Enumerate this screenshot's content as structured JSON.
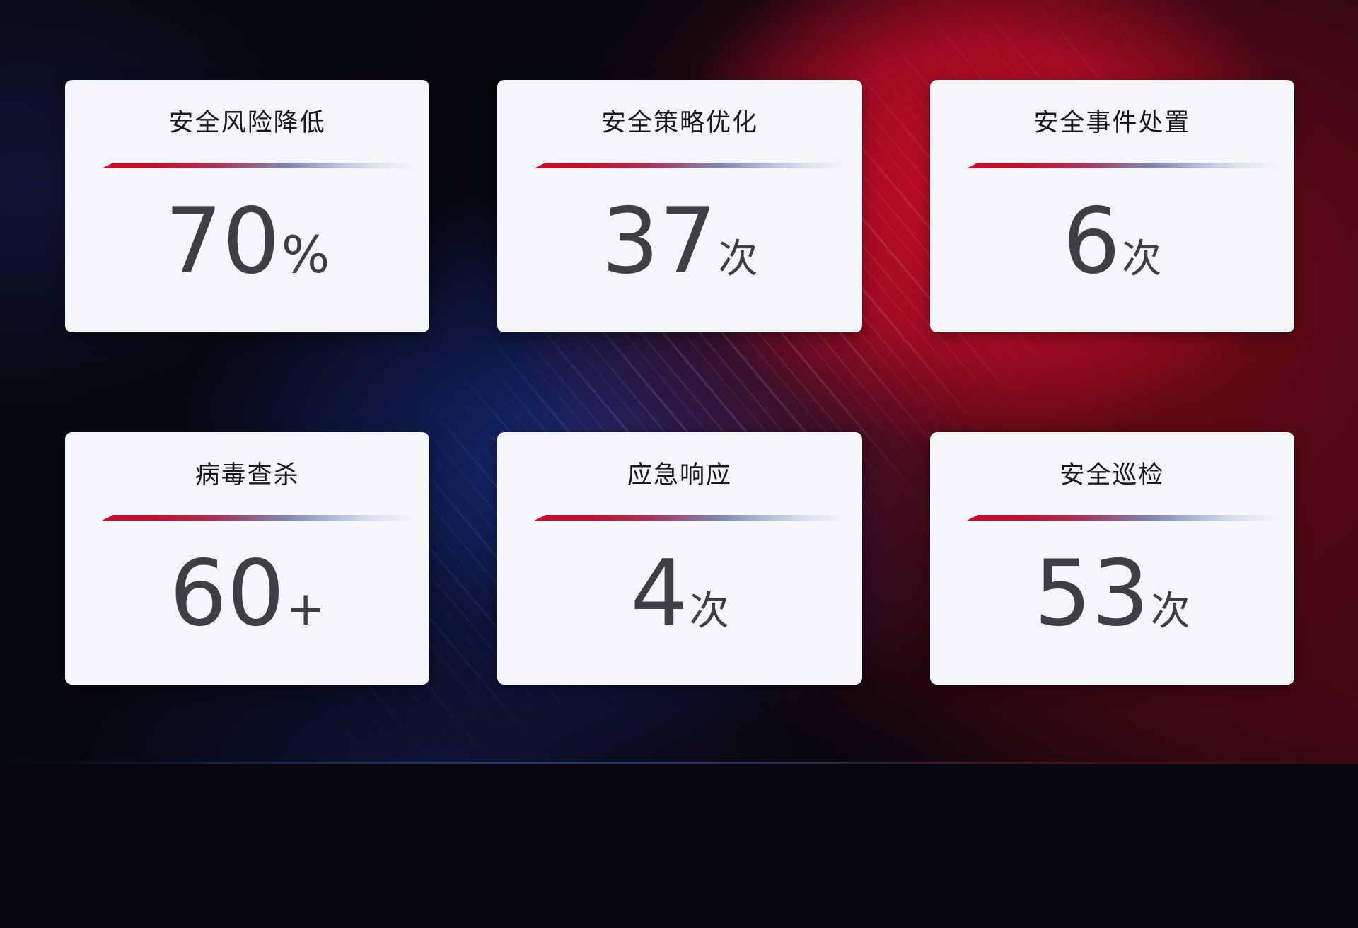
{
  "cards": [
    {
      "title": "安全风险降低",
      "value": "70",
      "unit": "%"
    },
    {
      "title": "安全策略优化",
      "value": "37",
      "unit": "次"
    },
    {
      "title": "安全事件处置",
      "value": "6",
      "unit": "次"
    },
    {
      "title": "病毒查杀",
      "value": "60",
      "unit": "+"
    },
    {
      "title": "应急响应",
      "value": "4",
      "unit": "次"
    },
    {
      "title": "安全巡检",
      "value": "53",
      "unit": "次"
    }
  ],
  "colors": {
    "accent_red": "#c31030",
    "divider_blue": "#8088b0",
    "card_background": "#f5f6f9",
    "title_text": "#17181c",
    "value_text": "#3e3f44",
    "background_red_glow": "#c20d28",
    "background_blue_glow": "#192d82",
    "background_base": "#05060d"
  }
}
